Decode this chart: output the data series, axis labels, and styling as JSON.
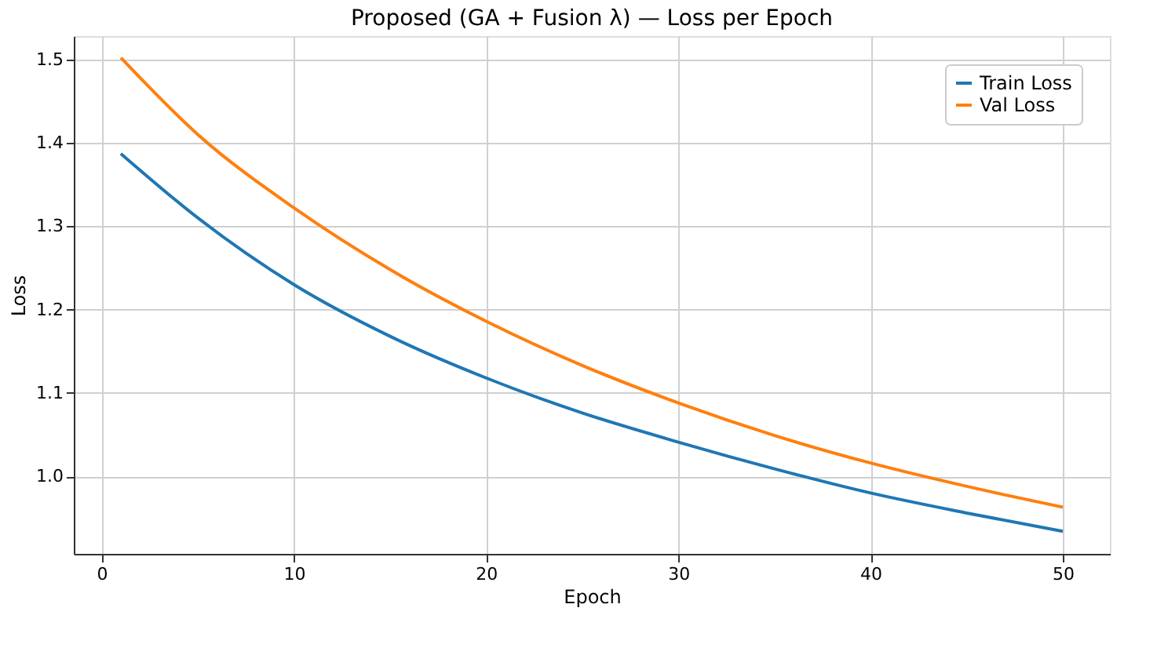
{
  "chart_data": {
    "type": "line",
    "title": "Proposed (GA + Fusion λ) — Loss per Epoch",
    "xlabel": "Epoch",
    "ylabel": "Loss",
    "x": [
      1,
      5,
      10,
      15,
      20,
      25,
      30,
      35,
      40,
      45,
      50
    ],
    "series": [
      {
        "name": "Train Loss",
        "color": "#1f77b4",
        "values": [
          1.387,
          1.31,
          1.23,
          1.168,
          1.118,
          1.076,
          1.041,
          1.009,
          0.98,
          0.956,
          0.934
        ]
      },
      {
        "name": "Val Loss",
        "color": "#ff7f0e",
        "values": [
          1.502,
          1.41,
          1.322,
          1.248,
          1.186,
          1.133,
          1.088,
          1.049,
          1.016,
          0.988,
          0.963
        ]
      }
    ],
    "xlim": [
      -1.45,
      52.45
    ],
    "xticks": [
      0,
      10,
      20,
      30,
      40,
      50
    ],
    "ylim": [
      0.907,
      1.528
    ],
    "yticks": [
      {
        "value": 1.0,
        "label": "1.0"
      },
      1.1,
      1.2,
      1.3,
      1.4,
      1.5
    ],
    "grid": true,
    "legend": "top right",
    "marker": "none",
    "line_style": "solid"
  }
}
